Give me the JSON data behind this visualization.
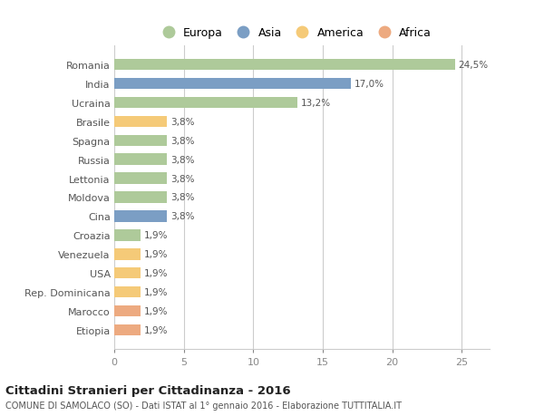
{
  "categories": [
    "Etiopia",
    "Marocco",
    "Rep. Dominicana",
    "USA",
    "Venezuela",
    "Croazia",
    "Cina",
    "Moldova",
    "Lettonia",
    "Russia",
    "Spagna",
    "Brasile",
    "Ucraina",
    "India",
    "Romania"
  ],
  "values": [
    1.9,
    1.9,
    1.9,
    1.9,
    1.9,
    1.9,
    3.8,
    3.8,
    3.8,
    3.8,
    3.8,
    3.8,
    13.2,
    17.0,
    24.5
  ],
  "colors": [
    "#EDAA80",
    "#EDAA80",
    "#F5CA78",
    "#F5CA78",
    "#F5CA78",
    "#AECA9A",
    "#7B9EC4",
    "#AECA9A",
    "#AECA9A",
    "#AECA9A",
    "#AECA9A",
    "#F5CA78",
    "#AECA9A",
    "#7B9EC4",
    "#AECA9A"
  ],
  "labels": [
    "1,9%",
    "1,9%",
    "1,9%",
    "1,9%",
    "1,9%",
    "1,9%",
    "3,8%",
    "3,8%",
    "3,8%",
    "3,8%",
    "3,8%",
    "3,8%",
    "13,2%",
    "17,0%",
    "24,5%"
  ],
  "legend_labels": [
    "Europa",
    "Asia",
    "America",
    "Africa"
  ],
  "legend_colors": [
    "#AECA9A",
    "#7B9EC4",
    "#F5CA78",
    "#EDAA80"
  ],
  "xlim": [
    0,
    27
  ],
  "xticks": [
    0,
    5,
    10,
    15,
    20,
    25
  ],
  "title": "Cittadini Stranieri per Cittadinanza - 2016",
  "subtitle": "COMUNE DI SAMOLACO (SO) - Dati ISTAT al 1° gennaio 2016 - Elaborazione TUTTITALIA.IT",
  "background_color": "#ffffff",
  "grid_color": "#cccccc"
}
